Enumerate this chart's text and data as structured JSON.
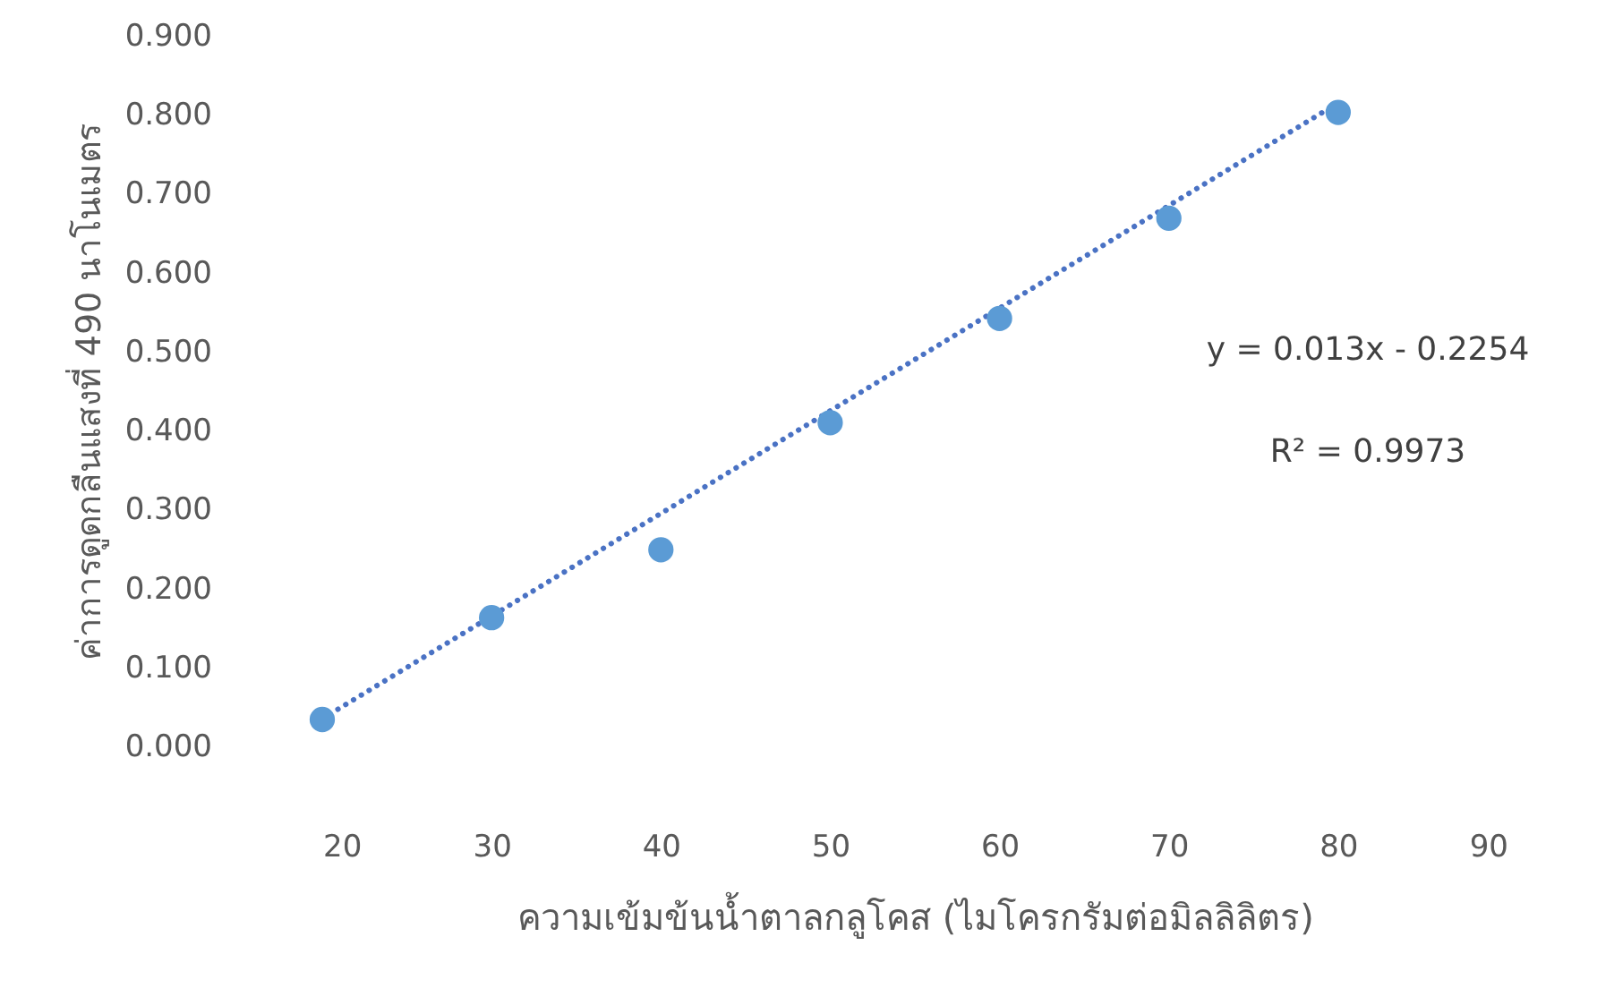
{
  "chart_data": {
    "type": "scatter",
    "xlabel": "ความเข้มข้นน้ำตาลกลูโคส (ไมโครกรัมต่อมิลลิลิตร)",
    "ylabel": "ค่าการดูดกลืนแสงที่ 490 นาโนเมตร",
    "x": [
      20,
      30,
      40,
      50,
      60,
      70,
      80
    ],
    "series": [
      {
        "color": "#5b9bd5",
        "values": [
          0.034,
          0.163,
          0.249,
          0.41,
          0.542,
          0.669,
          0.803
        ],
        "marker": "circle"
      },
      {
        "type": "line",
        "color": "#4a72c4",
        "x": [
          20,
          80
        ],
        "values": [
          0.035,
          0.815
        ],
        "line_style": "dotted",
        "marker": "none"
      }
    ],
    "annotations": [
      "y = 0.013x - 0.2254",
      "R² = 0.9973"
    ],
    "xlim": [
      20,
      90
    ],
    "xticks": [
      20,
      30,
      40,
      50,
      60,
      70,
      80,
      90
    ],
    "ylim": [
      0,
      0.9
    ],
    "yticks": [
      {
        "value": 0,
        "label": "0.000"
      },
      {
        "value": 0.1,
        "label": "0.100"
      },
      {
        "value": 0.2,
        "label": "0.200"
      },
      {
        "value": 0.3,
        "label": "0.300"
      },
      {
        "value": 0.4,
        "label": "0.400"
      },
      {
        "value": 0.5,
        "label": "0.500"
      },
      {
        "value": 0.6,
        "label": "0.600"
      },
      {
        "value": 0.7,
        "label": "0.700"
      },
      {
        "value": 0.8,
        "label": "0.800"
      },
      {
        "value": 0.9,
        "label": "0.900"
      }
    ],
    "grid": false
  }
}
